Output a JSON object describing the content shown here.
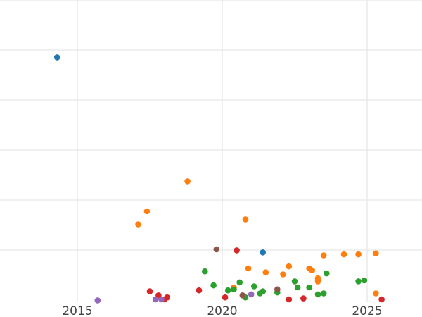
{
  "chart_data": {
    "type": "scatter",
    "title": "",
    "xlabel": "",
    "ylabel": "",
    "x_ticks": [
      2015,
      2020,
      2025
    ],
    "grid": true,
    "series": [
      {
        "color": "#1f77b4",
        "points": [
          [
            2014.3,
            24.2
          ],
          [
            2021.4,
            4.7
          ]
        ]
      },
      {
        "color": "#ff7f0e",
        "points": [
          [
            2018.8,
            11.8
          ],
          [
            2017.4,
            8.8
          ],
          [
            2017.1,
            7.5
          ],
          [
            2020.8,
            8.0
          ],
          [
            2020.9,
            3.1
          ],
          [
            2021.5,
            2.7
          ],
          [
            2022.1,
            2.5
          ],
          [
            2022.3,
            3.3
          ],
          [
            2023.0,
            3.1
          ],
          [
            2023.1,
            2.9
          ],
          [
            2023.3,
            2.1
          ],
          [
            2023.3,
            1.8
          ],
          [
            2023.5,
            4.4
          ],
          [
            2024.2,
            4.5
          ],
          [
            2024.7,
            4.5
          ],
          [
            2025.3,
            4.6
          ],
          [
            2025.3,
            0.6
          ],
          [
            2020.4,
            1.2
          ]
        ]
      },
      {
        "color": "#2ca02c",
        "points": [
          [
            2019.4,
            2.8
          ],
          [
            2019.7,
            1.4
          ],
          [
            2020.2,
            0.9
          ],
          [
            2020.4,
            1.0
          ],
          [
            2020.6,
            1.7
          ],
          [
            2020.8,
            0.2
          ],
          [
            2021.1,
            1.3
          ],
          [
            2021.3,
            0.6
          ],
          [
            2021.4,
            0.8
          ],
          [
            2021.9,
            0.7
          ],
          [
            2022.5,
            1.8
          ],
          [
            2022.6,
            1.2
          ],
          [
            2023.0,
            1.2
          ],
          [
            2023.3,
            0.5
          ],
          [
            2023.5,
            0.6
          ],
          [
            2023.6,
            2.6
          ],
          [
            2024.7,
            1.8
          ],
          [
            2024.9,
            1.9
          ]
        ]
      },
      {
        "color": "#d62728",
        "points": [
          [
            2017.5,
            0.8
          ],
          [
            2017.8,
            0.4
          ],
          [
            2018.1,
            0.2
          ],
          [
            2018.0,
            0.0
          ],
          [
            2019.2,
            0.9
          ],
          [
            2020.1,
            0.2
          ],
          [
            2020.5,
            4.9
          ],
          [
            2022.3,
            0.0
          ],
          [
            2022.8,
            0.1
          ],
          [
            2025.5,
            0.0
          ]
        ]
      },
      {
        "color": "#9467bd",
        "points": [
          [
            2015.7,
            -0.1
          ],
          [
            2017.7,
            0.0
          ],
          [
            2017.9,
            0.0
          ],
          [
            2021.0,
            0.5
          ]
        ]
      },
      {
        "color": "#8c564b",
        "points": [
          [
            2019.8,
            5.0
          ],
          [
            2020.7,
            0.4
          ],
          [
            2021.9,
            1.0
          ]
        ]
      }
    ]
  }
}
